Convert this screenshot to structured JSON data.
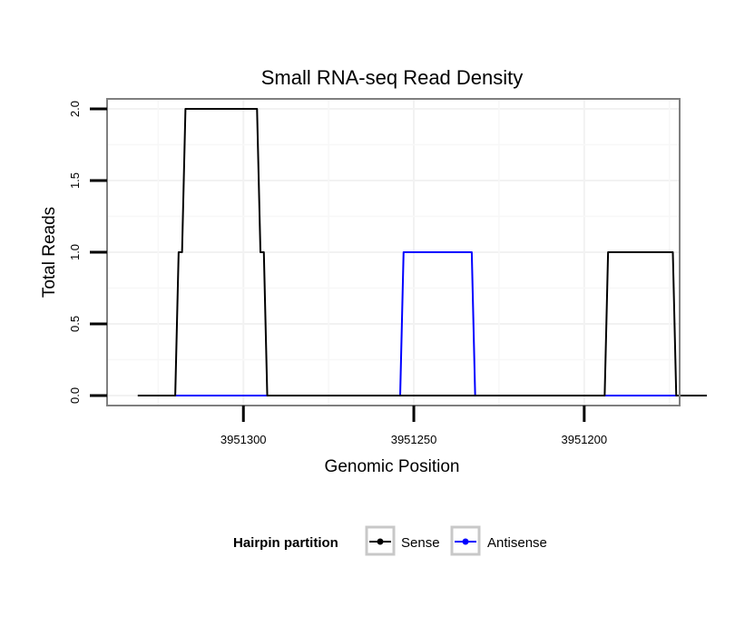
{
  "chart_data": {
    "type": "line",
    "title": "Small RNA-seq Read Density",
    "xlabel": "Genomic Position",
    "ylabel": "Total Reads",
    "x_reversed": true,
    "xlim": [
      3951340,
      3951172
    ],
    "ylim": [
      -0.07,
      2.07
    ],
    "x_ticks": [
      3951300,
      3951250,
      3951200
    ],
    "x_tick_labels": [
      "3951300",
      "3951250",
      "3951200"
    ],
    "y_ticks": [
      0,
      0.5,
      1,
      1.5,
      2
    ],
    "y_tick_labels": [
      "0.0",
      "0.5",
      "1.0",
      "1.5",
      "2.0"
    ],
    "grid": true,
    "legend": {
      "title": "Hairpin partition",
      "position": "bottom",
      "entries": [
        "Sense",
        "Antisense"
      ]
    },
    "series": [
      {
        "name": "Sense",
        "color": "#000000",
        "points": [
          [
            3951331,
            0
          ],
          [
            3951320,
            0
          ],
          [
            3951319,
            1
          ],
          [
            3951318,
            1
          ],
          [
            3951317,
            2
          ],
          [
            3951296,
            2
          ],
          [
            3951295,
            1
          ],
          [
            3951294,
            1
          ],
          [
            3951293,
            0
          ],
          [
            3951194,
            0
          ],
          [
            3951193,
            1
          ],
          [
            3951174,
            1
          ],
          [
            3951173,
            0
          ],
          [
            3951164,
            0
          ]
        ]
      },
      {
        "name": "Antisense",
        "color": "#0000ff",
        "points": [
          [
            3951320,
            0
          ],
          [
            3951293,
            0
          ],
          [
            3951292,
            0
          ],
          [
            3951254,
            0
          ],
          [
            3951253,
            1
          ],
          [
            3951233,
            1
          ],
          [
            3951232,
            0
          ],
          [
            3951194,
            0
          ],
          [
            3951173,
            0
          ]
        ]
      }
    ]
  }
}
